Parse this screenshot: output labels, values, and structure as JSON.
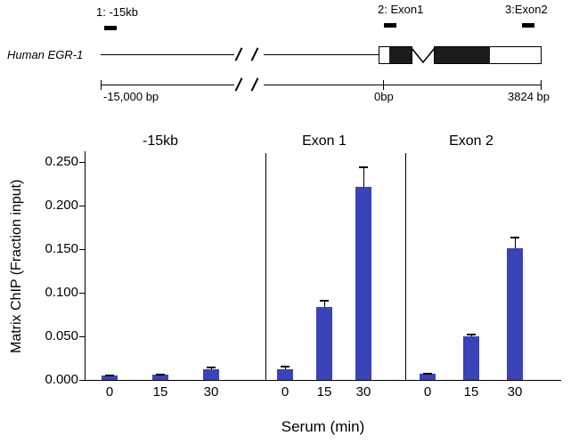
{
  "diagram": {
    "gene_label": "Human EGR-1",
    "marker_1": "1: -15kb",
    "marker_2": "2: Exon1",
    "marker_3": "3:Exon2",
    "scale_left": "-15,000  bp",
    "scale_mid": "0bp",
    "scale_right": "3824 bp"
  },
  "chart_data": {
    "type": "bar",
    "ylabel": "Matrix ChIP (Fraction input)",
    "xlabel": "Serum (min)",
    "ylim": [
      0,
      0.25
    ],
    "ytick_labels": [
      "0.000",
      "0.050",
      "0.100",
      "0.150",
      "0.200",
      "0.250"
    ],
    "categories": [
      "0",
      "15",
      "30"
    ],
    "bar_color": "#3b43b8",
    "grid": false,
    "legend": false,
    "panels": [
      {
        "name": "-15kb",
        "values": [
          0.005,
          0.006,
          0.012
        ],
        "errors": [
          0.001,
          0.001,
          0.003
        ]
      },
      {
        "name": "Exon 1",
        "values": [
          0.012,
          0.084,
          0.221
        ],
        "errors": [
          0.004,
          0.008,
          0.023
        ]
      },
      {
        "name": "Exon 2",
        "values": [
          0.007,
          0.05,
          0.151
        ],
        "errors": [
          0.001,
          0.003,
          0.013
        ]
      }
    ]
  }
}
